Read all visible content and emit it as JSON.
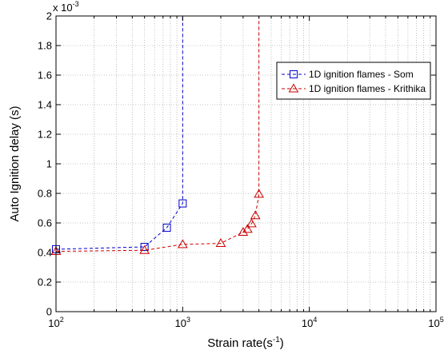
{
  "chart_data": {
    "type": "line",
    "xscale": "log",
    "xlim": [
      100,
      100000
    ],
    "ylim": [
      0,
      0.002
    ],
    "grid": true,
    "xlabel": {
      "base": "Strain rate(s",
      "sup": "-1",
      "tail": ")"
    },
    "ylabel": "Auto Ignition delay (s)",
    "y_multiplier": {
      "prefix": "x 10",
      "exp": "-3"
    },
    "x_ticks": [
      {
        "value": 100,
        "base": "10",
        "exp": "2"
      },
      {
        "value": 1000,
        "base": "10",
        "exp": "3"
      },
      {
        "value": 10000,
        "base": "10",
        "exp": "4"
      },
      {
        "value": 100000,
        "base": "10",
        "exp": "5"
      }
    ],
    "y_ticks": [
      {
        "value": 0,
        "label": "0"
      },
      {
        "value": 0.0002,
        "label": "0.2"
      },
      {
        "value": 0.0004,
        "label": "0.4"
      },
      {
        "value": 0.0006,
        "label": "0.6"
      },
      {
        "value": 0.0008,
        "label": "0.8"
      },
      {
        "value": 0.001,
        "label": "1"
      },
      {
        "value": 0.0012,
        "label": "1.2"
      },
      {
        "value": 0.0014,
        "label": "1.4"
      },
      {
        "value": 0.0016,
        "label": "1.6"
      },
      {
        "value": 0.0018,
        "label": "1.8"
      },
      {
        "value": 0.002,
        "label": "2"
      }
    ],
    "legend_position": "upper-right",
    "series": [
      {
        "name": "1D ignition flames - Som",
        "color": "#0000cc",
        "marker": "square",
        "markers": [
          {
            "x": 100,
            "y": 0.000422
          },
          {
            "x": 500,
            "y": 0.000438
          },
          {
            "x": 750,
            "y": 0.000568
          },
          {
            "x": 1000,
            "y": 0.000732
          }
        ],
        "line": [
          {
            "x": 100,
            "y": 0.000422
          },
          {
            "x": 500,
            "y": 0.000438
          },
          {
            "x": 750,
            "y": 0.000568
          },
          {
            "x": 1000,
            "y": 0.000732
          },
          {
            "x": 1000,
            "y": 0.002
          }
        ]
      },
      {
        "name": "1D ignition flames - Krithika",
        "color": "#cc0000",
        "marker": "triangle",
        "markers": [
          {
            "x": 100,
            "y": 0.000408
          },
          {
            "x": 500,
            "y": 0.000415
          },
          {
            "x": 1000,
            "y": 0.000455
          },
          {
            "x": 2000,
            "y": 0.000462
          },
          {
            "x": 3000,
            "y": 0.000538
          },
          {
            "x": 3250,
            "y": 0.000558
          },
          {
            "x": 3500,
            "y": 0.000595
          },
          {
            "x": 3750,
            "y": 0.00065
          },
          {
            "x": 4000,
            "y": 0.000795
          }
        ],
        "line": [
          {
            "x": 100,
            "y": 0.000408
          },
          {
            "x": 500,
            "y": 0.000415
          },
          {
            "x": 1000,
            "y": 0.000455
          },
          {
            "x": 2000,
            "y": 0.000462
          },
          {
            "x": 3000,
            "y": 0.000538
          },
          {
            "x": 3250,
            "y": 0.000558
          },
          {
            "x": 3500,
            "y": 0.000595
          },
          {
            "x": 3750,
            "y": 0.00065
          },
          {
            "x": 4000,
            "y": 0.000795
          },
          {
            "x": 4000,
            "y": 0.002
          }
        ]
      }
    ]
  }
}
